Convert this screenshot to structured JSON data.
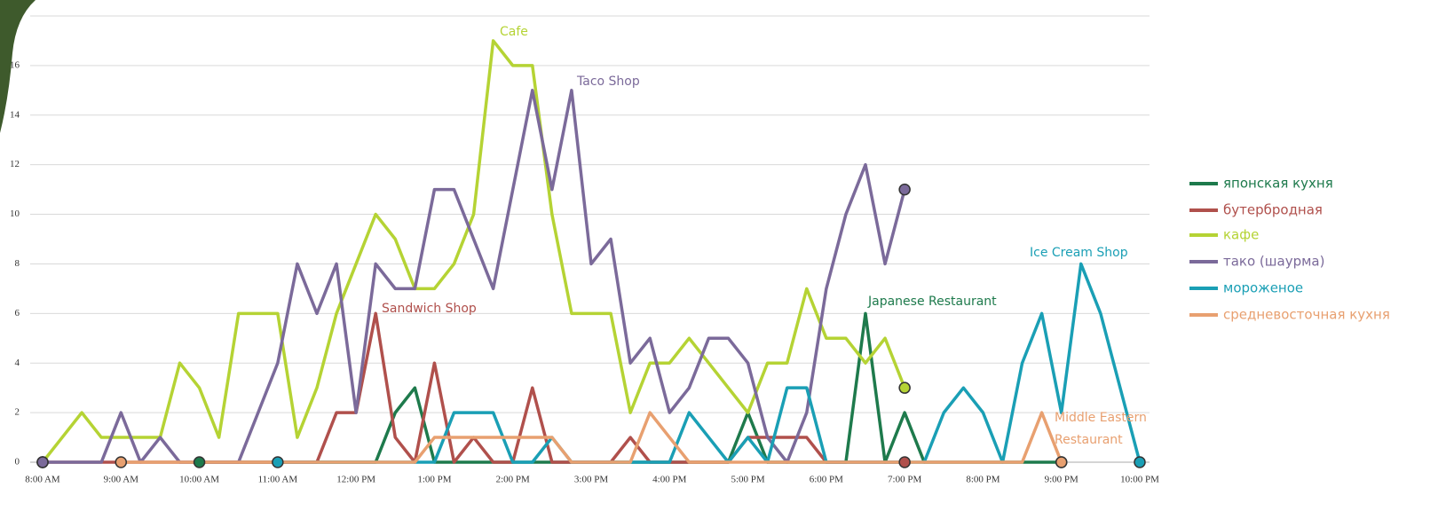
{
  "chart_data": {
    "type": "line",
    "categories": [
      "8:00 AM",
      null,
      null,
      null,
      "9:00 AM",
      null,
      null,
      null,
      "10:00 AM",
      null,
      null,
      null,
      "11:00 AM",
      null,
      null,
      null,
      "12:00 PM",
      null,
      null,
      null,
      "1:00 PM",
      null,
      null,
      null,
      "2:00 PM",
      null,
      null,
      null,
      "3:00 PM",
      null,
      null,
      null,
      "4:00 PM",
      null,
      null,
      null,
      "5:00 PM",
      null,
      null,
      null,
      "6:00 PM",
      null,
      null,
      null,
      "7:00 PM",
      null,
      null,
      null,
      "8:00 PM",
      null,
      null,
      null,
      "9:00 PM",
      null,
      null,
      null,
      "10:00 PM"
    ],
    "series": [
      {
        "name": "японская кухня",
        "color": "#1e7a4c",
        "values": [
          null,
          null,
          null,
          null,
          null,
          null,
          null,
          null,
          0,
          0,
          0,
          0,
          0,
          0,
          0,
          0,
          0,
          0,
          2,
          3,
          0,
          0,
          0,
          0,
          0,
          0,
          0,
          0,
          0,
          0,
          0,
          0,
          0,
          0,
          0,
          0,
          2,
          0,
          0,
          0,
          0,
          0,
          6,
          0,
          2,
          0,
          0,
          0,
          0,
          0,
          0,
          0,
          0,
          null,
          null,
          null,
          null
        ]
      },
      {
        "name": "бутербродная",
        "color": "#b0504c",
        "values": [
          0,
          0,
          0,
          0,
          0,
          0,
          0,
          0,
          0,
          0,
          0,
          0,
          0,
          0,
          0,
          2,
          2,
          6,
          1,
          0,
          4,
          0,
          1,
          0,
          0,
          3,
          0,
          0,
          0,
          0,
          1,
          0,
          0,
          0,
          0,
          0,
          1,
          1,
          1,
          1,
          0,
          0,
          0,
          0,
          0,
          null,
          null,
          null,
          null,
          null,
          null,
          null,
          null,
          null,
          null,
          null,
          null
        ]
      },
      {
        "name": "кафе",
        "color": "#b5d334",
        "values": [
          0,
          1,
          2,
          1,
          1,
          1,
          1,
          4,
          3,
          1,
          6,
          6,
          6,
          1,
          3,
          6,
          8,
          10,
          9,
          7,
          7,
          8,
          10,
          17,
          16,
          16,
          10,
          6,
          6,
          6,
          2,
          4,
          4,
          5,
          4,
          3,
          2,
          4,
          4,
          7,
          5,
          5,
          4,
          5,
          3,
          null,
          null,
          null,
          null,
          null,
          null,
          null,
          null,
          null,
          null,
          null,
          null
        ]
      },
      {
        "name": "тако (шаурма)",
        "color": "#7b6a9a",
        "values": [
          0,
          0,
          0,
          0,
          2,
          0,
          1,
          0,
          0,
          0,
          0,
          2,
          4,
          8,
          6,
          8,
          2,
          8,
          7,
          7,
          11,
          11,
          9,
          7,
          11,
          15,
          11,
          15,
          8,
          9,
          4,
          5,
          2,
          3,
          5,
          5,
          4,
          1,
          0,
          2,
          7,
          10,
          12,
          8,
          11,
          null,
          null,
          null,
          null,
          null,
          null,
          null,
          null,
          null,
          null,
          null,
          null
        ]
      },
      {
        "name": "мороженое",
        "color": "#1a9fb5",
        "values": [
          null,
          null,
          null,
          null,
          null,
          null,
          null,
          null,
          null,
          null,
          null,
          null,
          0,
          0,
          0,
          0,
          0,
          0,
          0,
          0,
          0,
          2,
          2,
          2,
          0,
          0,
          1,
          0,
          0,
          0,
          0,
          0,
          0,
          2,
          1,
          0,
          1,
          0,
          3,
          3,
          0,
          0,
          0,
          0,
          0,
          0,
          2,
          3,
          2,
          0,
          4,
          6,
          2,
          8,
          6,
          3,
          0
        ]
      },
      {
        "name": "средневосточная кухня",
        "color": "#e8a070",
        "values": [
          null,
          null,
          null,
          null,
          0,
          0,
          0,
          0,
          0,
          0,
          0,
          0,
          0,
          0,
          0,
          0,
          0,
          0,
          0,
          0,
          1,
          1,
          1,
          1,
          1,
          1,
          1,
          0,
          0,
          0,
          0,
          2,
          1,
          0,
          0,
          0,
          0,
          0,
          0,
          0,
          0,
          0,
          0,
          0,
          0,
          0,
          0,
          0,
          0,
          0,
          0,
          2,
          0,
          null,
          null,
          null,
          null
        ]
      }
    ],
    "annotations": [
      "Cafe",
      "Taco Shop",
      "Sandwich Shop",
      "Japanese Restaurant",
      "Ice Cream Shop",
      "Middle Eastern",
      "Restaurant"
    ],
    "ylim": [
      0,
      18
    ],
    "yticks": [
      0,
      2,
      4,
      6,
      8,
      10,
      12,
      14,
      16,
      18
    ],
    "grid": true
  }
}
